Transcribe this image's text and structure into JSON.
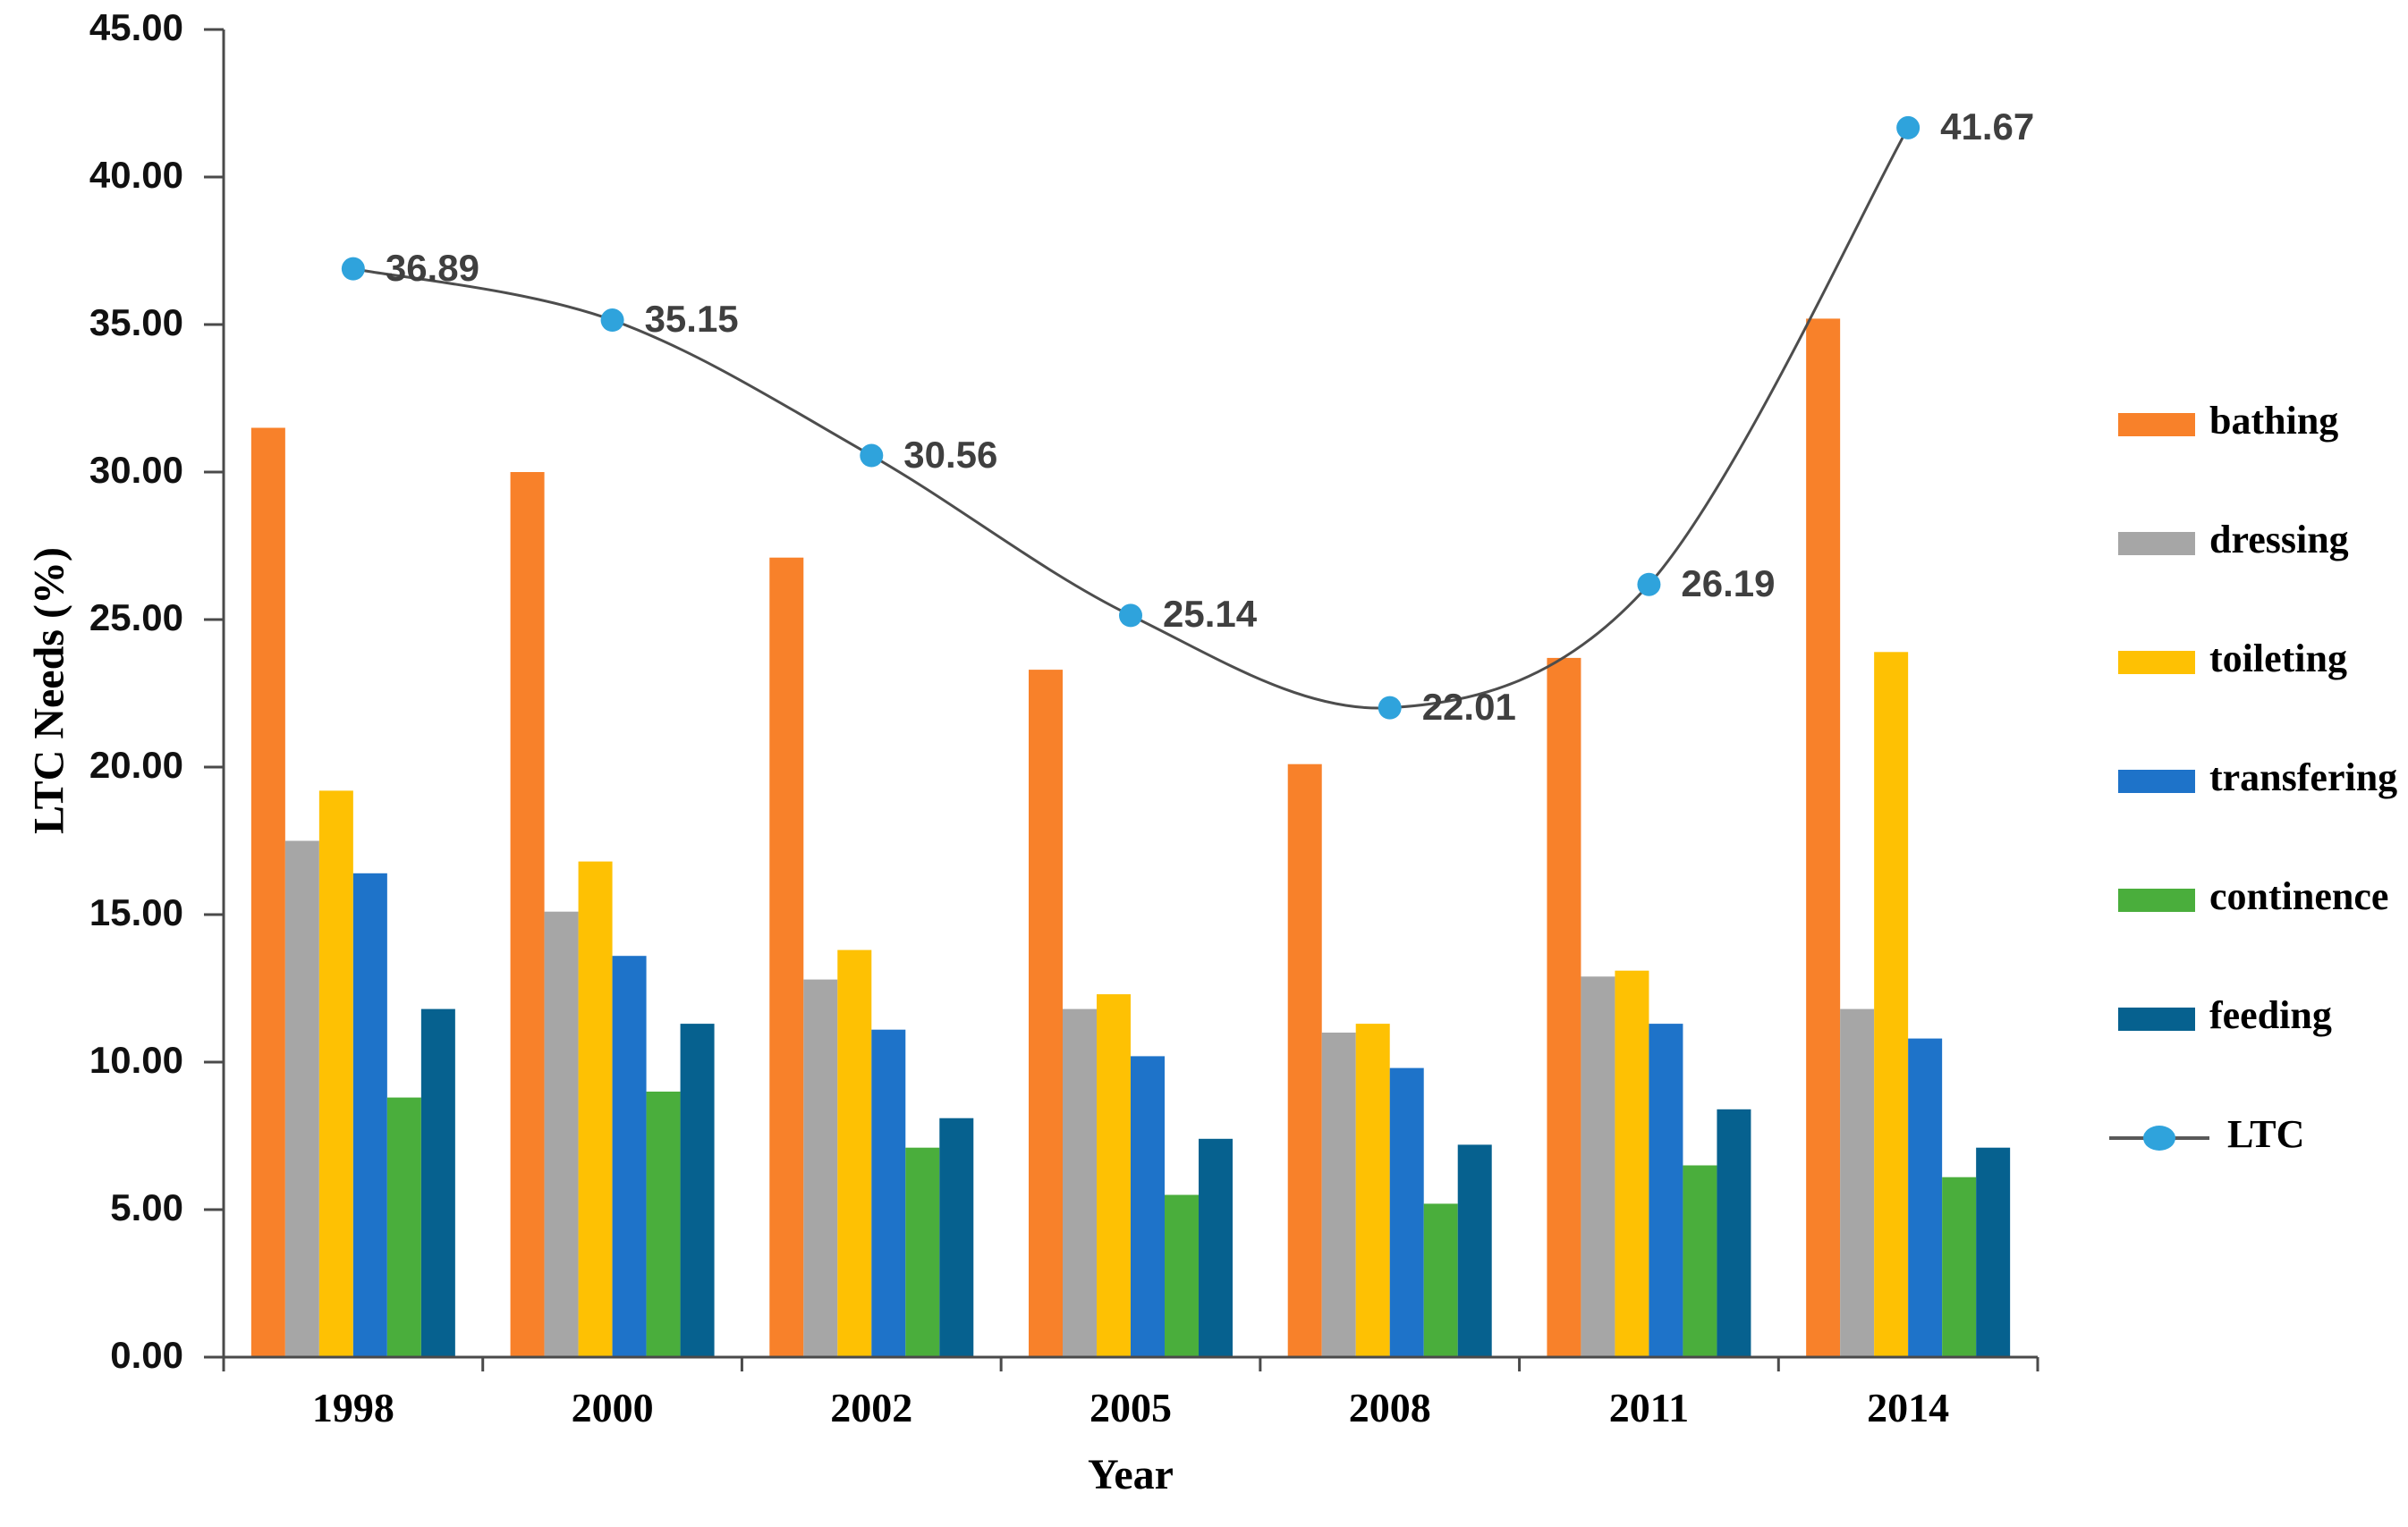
{
  "chart_data": {
    "type": "bar+line",
    "title": "",
    "xlabel": "Year",
    "ylabel": "LTC Needs (%)",
    "ylim": [
      0,
      45
    ],
    "ytick_step": 5,
    "ytick_labels": [
      "45.00",
      "40.00",
      "35.00",
      "30.00",
      "25.00",
      "20.00",
      "15.00",
      "10.00",
      "5.00",
      "0.00"
    ],
    "grid": false,
    "legend_position": "right",
    "categories": [
      "1998",
      "2000",
      "2002",
      "2005",
      "2008",
      "2011",
      "2014"
    ],
    "bar_series": [
      {
        "name": "bathing",
        "color": "#F8812A",
        "values": [
          31.5,
          30.0,
          27.1,
          23.3,
          20.1,
          23.7,
          35.2
        ]
      },
      {
        "name": "dressing",
        "color": "#A6A6A6",
        "values": [
          17.5,
          15.1,
          12.8,
          11.8,
          11.0,
          12.9,
          11.8
        ]
      },
      {
        "name": "toileting",
        "color": "#FEC103",
        "values": [
          19.2,
          16.8,
          13.8,
          12.3,
          11.3,
          13.1,
          23.9
        ]
      },
      {
        "name": "transfering",
        "color": "#1E73C9",
        "values": [
          16.4,
          13.6,
          11.1,
          10.2,
          9.8,
          11.3,
          10.8
        ]
      },
      {
        "name": "continence",
        "color": "#4AAE3C",
        "values": [
          8.8,
          9.0,
          7.1,
          5.5,
          5.2,
          6.5,
          6.1
        ]
      },
      {
        "name": "feeding",
        "color": "#06618F",
        "values": [
          11.8,
          11.3,
          8.1,
          7.4,
          7.2,
          8.4,
          7.1
        ]
      }
    ],
    "line_series": {
      "name": "LTC",
      "values": [
        36.89,
        35.15,
        30.56,
        25.14,
        22.01,
        26.19,
        41.67
      ],
      "point_labels": [
        "36.89",
        "35.15",
        "30.56",
        "25.14",
        "22.01",
        "26.19",
        "41.67"
      ],
      "line_color": "#4d4d4d",
      "marker_color": "#2FA3DC"
    },
    "axis_color": "#4a4a4a"
  }
}
